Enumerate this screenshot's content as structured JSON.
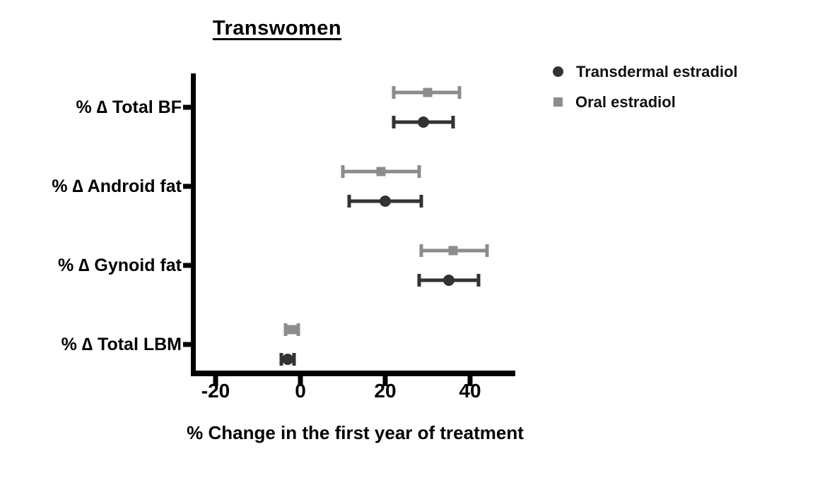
{
  "chart_data": {
    "type": "scatter",
    "subtype": "horizontal dot plot with error bars (forest plot)",
    "title": "Transwomen",
    "xlabel": "% Change in the first year of treatment",
    "ylabel": "",
    "xlim": [
      -25.5,
      50.5
    ],
    "xticks": [
      -20,
      0,
      20,
      40
    ],
    "xticklabels": [
      "-20",
      "0",
      "20",
      "40"
    ],
    "categories": [
      "% ∆ Total BF",
      "% ∆ Android fat",
      "% ∆ Gynoid fat",
      "% ∆ Total LBM"
    ],
    "grid": false,
    "legend_position": "top-right",
    "axis_color": "#000000",
    "series": [
      {
        "name": "Transdermal estradiol",
        "marker": "circle",
        "color": "#333333",
        "points": [
          {
            "category": "% ∆ Total BF",
            "mean": 29,
            "ci_low": 22,
            "ci_high": 36
          },
          {
            "category": "% ∆ Android fat",
            "mean": 20,
            "ci_low": 11.5,
            "ci_high": 28.5
          },
          {
            "category": "% ∆ Gynoid fat",
            "mean": 35,
            "ci_low": 28,
            "ci_high": 42
          },
          {
            "category": "% ∆ Total LBM",
            "mean": -3,
            "ci_low": -4.5,
            "ci_high": -1.5
          }
        ]
      },
      {
        "name": "Oral estradiol",
        "marker": "square",
        "color": "#8c8c8c",
        "points": [
          {
            "category": "% ∆ Total BF",
            "mean": 30,
            "ci_low": 22,
            "ci_high": 37.5
          },
          {
            "category": "% ∆ Android fat",
            "mean": 19,
            "ci_low": 10,
            "ci_high": 28
          },
          {
            "category": "% ∆ Gynoid fat",
            "mean": 36,
            "ci_low": 28.5,
            "ci_high": 44
          },
          {
            "category": "% ∆ Total LBM",
            "mean": -2,
            "ci_low": -3.5,
            "ci_high": -0.5
          }
        ]
      }
    ]
  }
}
